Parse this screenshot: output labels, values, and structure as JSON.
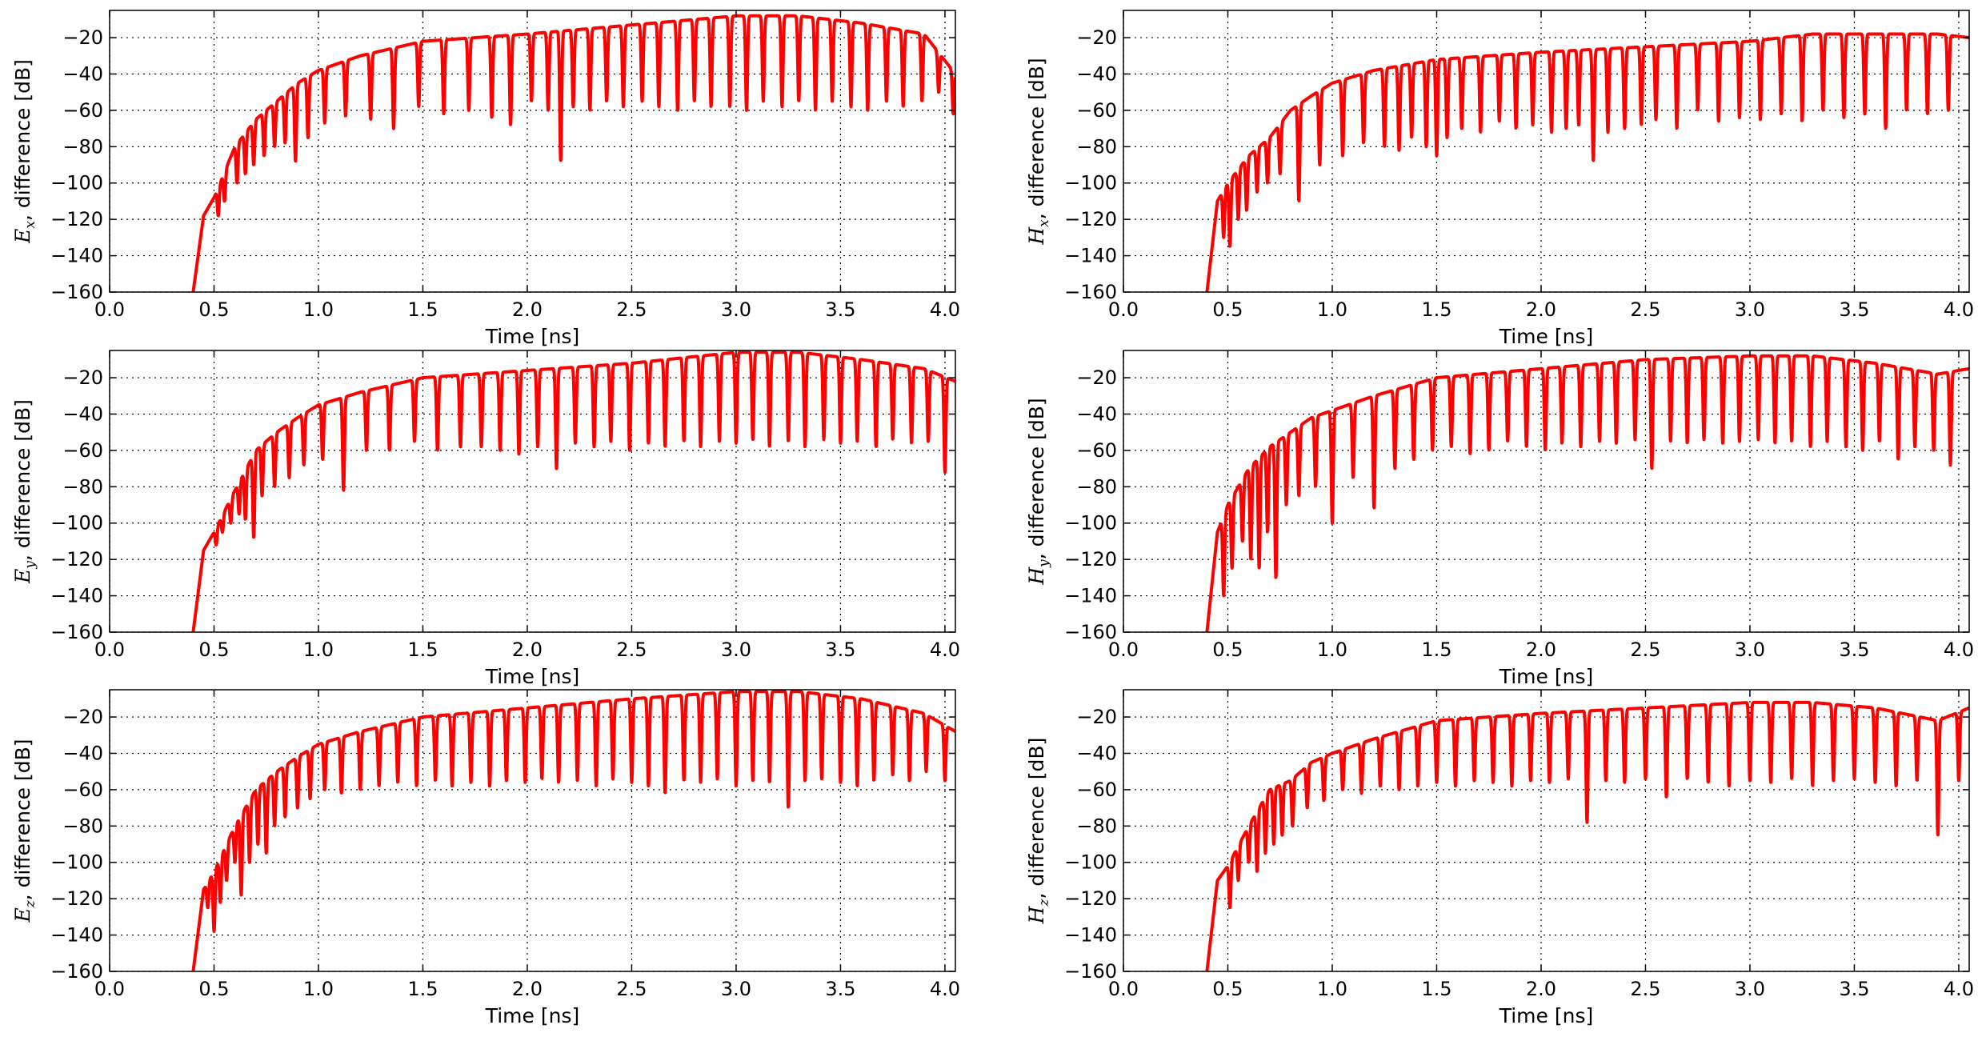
{
  "figure": {
    "line_color": "#ff0000",
    "grid_color": "#000000"
  },
  "chart_data": [
    {
      "type": "line",
      "ylabel_symbol": "E",
      "ylabel_subscript": "x",
      "ylabel_text": ", difference [dB]",
      "xlabel": "Time [ns]",
      "xlim": [
        0.0,
        4.05
      ],
      "ylim": [
        -160,
        -5
      ],
      "xticks": [
        "0.0",
        "0.5",
        "1.0",
        "1.5",
        "2.0",
        "2.5",
        "3.0",
        "3.5",
        "4.0"
      ],
      "yticks": [
        "-20",
        "-40",
        "-60",
        "-80",
        "-100",
        "-120",
        "-140",
        "-160"
      ],
      "grid": true,
      "envelope": {
        "x": [
          0.4,
          0.45,
          0.5,
          0.6,
          0.7,
          0.8,
          0.9,
          1.0,
          1.2,
          1.5,
          2.0,
          2.5,
          3.0,
          3.3,
          3.6,
          3.9,
          4.05
        ],
        "y": [
          -160,
          -118,
          -108,
          -80,
          -65,
          -55,
          -45,
          -38,
          -30,
          -22,
          -18,
          -13,
          -8,
          -8,
          -12,
          -18,
          -40
        ]
      },
      "nulls": [
        0.52,
        0.55,
        0.61,
        0.65,
        0.69,
        0.74,
        0.79,
        0.84,
        0.89,
        0.95,
        1.03,
        1.13,
        1.25,
        1.36,
        1.48,
        1.6,
        1.72,
        1.83,
        1.92,
        2.02,
        2.1,
        2.16,
        2.22,
        2.3,
        2.38,
        2.46,
        2.55,
        2.63,
        2.72,
        2.8,
        2.88,
        2.97,
        3.05,
        3.13,
        3.22,
        3.3,
        3.38,
        3.46,
        3.55,
        3.63,
        3.72,
        3.8,
        3.89,
        3.97,
        4.04
      ],
      "null_depths": [
        -118,
        -110,
        -100,
        -95,
        -90,
        -85,
        -80,
        -78,
        -88,
        -75,
        -67,
        -63,
        -65,
        -70,
        -58,
        -62,
        -60,
        -64,
        -68,
        -55,
        -60,
        -88,
        -58,
        -60,
        -55,
        -58,
        -55,
        -58,
        -60,
        -55,
        -58,
        -58,
        -60,
        -55,
        -58,
        -55,
        -60,
        -55,
        -58,
        -60,
        -55,
        -58,
        -55,
        -50,
        -62
      ]
    },
    {
      "type": "line",
      "ylabel_symbol": "H",
      "ylabel_subscript": "x",
      "ylabel_text": ", difference [dB]",
      "xlabel": "Time [ns]",
      "xlim": [
        0.0,
        4.05
      ],
      "ylim": [
        -160,
        -5
      ],
      "xticks": [
        "0.0",
        "0.5",
        "1.0",
        "1.5",
        "2.0",
        "2.5",
        "3.0",
        "3.5",
        "4.0"
      ],
      "yticks": [
        "-20",
        "-40",
        "-60",
        "-80",
        "-100",
        "-120",
        "-140",
        "-160"
      ],
      "grid": true,
      "envelope": {
        "x": [
          0.4,
          0.45,
          0.5,
          0.6,
          0.7,
          0.8,
          0.9,
          1.0,
          1.2,
          1.5,
          2.0,
          2.5,
          3.0,
          3.3,
          3.6,
          3.9,
          4.05
        ],
        "y": [
          -160,
          -110,
          -100,
          -85,
          -75,
          -60,
          -52,
          -45,
          -38,
          -32,
          -28,
          -25,
          -22,
          -18,
          -18,
          -18,
          -20
        ]
      },
      "nulls": [
        0.48,
        0.51,
        0.55,
        0.59,
        0.64,
        0.69,
        0.75,
        0.84,
        0.94,
        1.05,
        1.15,
        1.25,
        1.32,
        1.38,
        1.45,
        1.5,
        1.55,
        1.62,
        1.71,
        1.8,
        1.88,
        1.96,
        2.05,
        2.12,
        2.18,
        2.25,
        2.32,
        2.4,
        2.48,
        2.55,
        2.65,
        2.75,
        2.85,
        2.95,
        3.05,
        3.15,
        3.25,
        3.35,
        3.45,
        3.55,
        3.65,
        3.75,
        3.85,
        3.95
      ],
      "null_depths": [
        -130,
        -135,
        -120,
        -115,
        -105,
        -100,
        -95,
        -110,
        -90,
        -85,
        -78,
        -80,
        -82,
        -75,
        -80,
        -85,
        -75,
        -70,
        -72,
        -66,
        -70,
        -68,
        -72,
        -70,
        -68,
        -88,
        -72,
        -70,
        -68,
        -65,
        -70,
        -60,
        -66,
        -64,
        -65,
        -62,
        -66,
        -60,
        -64,
        -62,
        -70,
        -60,
        -62,
        -60
      ]
    },
    {
      "type": "line",
      "ylabel_symbol": "E",
      "ylabel_subscript": "y",
      "ylabel_text": ", difference [dB]",
      "xlabel": "Time [ns]",
      "xlim": [
        0.0,
        4.05
      ],
      "ylim": [
        -160,
        -5
      ],
      "xticks": [
        "0.0",
        "0.5",
        "1.0",
        "1.5",
        "2.0",
        "2.5",
        "3.0",
        "3.5",
        "4.0"
      ],
      "yticks": [
        "-20",
        "-40",
        "-60",
        "-80",
        "-100",
        "-120",
        "-140",
        "-160"
      ],
      "grid": true,
      "envelope": {
        "x": [
          0.4,
          0.45,
          0.5,
          0.6,
          0.7,
          0.8,
          0.9,
          1.0,
          1.2,
          1.5,
          2.0,
          2.5,
          3.0,
          3.3,
          3.6,
          3.9,
          4.05
        ],
        "y": [
          -160,
          -115,
          -105,
          -82,
          -60,
          -50,
          -42,
          -35,
          -28,
          -20,
          -16,
          -12,
          -6,
          -6,
          -10,
          -15,
          -22
        ]
      },
      "nulls": [
        0.51,
        0.54,
        0.58,
        0.62,
        0.65,
        0.69,
        0.73,
        0.79,
        0.86,
        0.93,
        1.02,
        1.12,
        1.23,
        1.34,
        1.46,
        1.57,
        1.68,
        1.78,
        1.87,
        1.96,
        2.05,
        2.14,
        2.23,
        2.32,
        2.4,
        2.49,
        2.58,
        2.66,
        2.75,
        2.83,
        2.92,
        3.0,
        3.08,
        3.16,
        3.25,
        3.33,
        3.42,
        3.5,
        3.58,
        3.67,
        3.75,
        3.84,
        3.92,
        4.0
      ],
      "null_depths": [
        -112,
        -105,
        -100,
        -95,
        -98,
        -108,
        -85,
        -80,
        -75,
        -68,
        -65,
        -82,
        -60,
        -60,
        -55,
        -60,
        -58,
        -58,
        -60,
        -62,
        -58,
        -70,
        -56,
        -58,
        -55,
        -60,
        -56,
        -58,
        -55,
        -58,
        -55,
        -56,
        -54,
        -58,
        -55,
        -58,
        -54,
        -56,
        -55,
        -58,
        -54,
        -56,
        -55,
        -72
      ]
    },
    {
      "type": "line",
      "ylabel_symbol": "H",
      "ylabel_subscript": "y",
      "ylabel_text": ", difference [dB]",
      "xlabel": "Time [ns]",
      "xlim": [
        0.0,
        4.05
      ],
      "ylim": [
        -160,
        -5
      ],
      "xticks": [
        "0.0",
        "0.5",
        "1.0",
        "1.5",
        "2.0",
        "2.5",
        "3.0",
        "3.5",
        "4.0"
      ],
      "yticks": [
        "-20",
        "-40",
        "-60",
        "-80",
        "-100",
        "-120",
        "-140",
        "-160"
      ],
      "grid": true,
      "envelope": {
        "x": [
          0.4,
          0.45,
          0.5,
          0.6,
          0.7,
          0.8,
          0.9,
          1.0,
          1.2,
          1.5,
          2.0,
          2.5,
          3.0,
          3.3,
          3.6,
          3.9,
          4.05
        ],
        "y": [
          -160,
          -105,
          -90,
          -70,
          -58,
          -50,
          -42,
          -38,
          -30,
          -20,
          -15,
          -10,
          -8,
          -8,
          -12,
          -18,
          -15
        ]
      },
      "nulls": [
        0.48,
        0.52,
        0.57,
        0.61,
        0.65,
        0.69,
        0.73,
        0.78,
        0.84,
        0.92,
        1.0,
        1.1,
        1.2,
        1.3,
        1.39,
        1.48,
        1.57,
        1.66,
        1.75,
        1.84,
        1.93,
        2.02,
        2.1,
        2.19,
        2.28,
        2.36,
        2.45,
        2.53,
        2.62,
        2.7,
        2.78,
        2.87,
        2.95,
        3.04,
        3.12,
        3.2,
        3.29,
        3.37,
        3.46,
        3.54,
        3.62,
        3.71,
        3.79,
        3.88,
        3.96
      ],
      "null_depths": [
        -140,
        -125,
        -110,
        -120,
        -125,
        -105,
        -130,
        -90,
        -85,
        -80,
        -100,
        -75,
        -92,
        -70,
        -65,
        -60,
        -58,
        -62,
        -60,
        -55,
        -58,
        -60,
        -56,
        -58,
        -55,
        -56,
        -54,
        -70,
        -55,
        -56,
        -54,
        -56,
        -55,
        -54,
        -56,
        -55,
        -58,
        -55,
        -58,
        -60,
        -55,
        -65,
        -58,
        -60,
        -68
      ]
    },
    {
      "type": "line",
      "ylabel_symbol": "E",
      "ylabel_subscript": "z",
      "ylabel_text": ", difference [dB]",
      "xlabel": "Time [ns]",
      "xlim": [
        0.0,
        4.05
      ],
      "ylim": [
        -160,
        -5
      ],
      "xticks": [
        "0.0",
        "0.5",
        "1.0",
        "1.5",
        "2.0",
        "2.5",
        "3.0",
        "3.5",
        "4.0"
      ],
      "yticks": [
        "-20",
        "-40",
        "-60",
        "-80",
        "-100",
        "-120",
        "-140",
        "-160"
      ],
      "grid": true,
      "envelope": {
        "x": [
          0.4,
          0.45,
          0.5,
          0.6,
          0.7,
          0.8,
          0.9,
          1.0,
          1.2,
          1.5,
          2.0,
          2.5,
          3.0,
          3.3,
          3.6,
          3.9,
          4.05
        ],
        "y": [
          -160,
          -115,
          -105,
          -80,
          -60,
          -50,
          -42,
          -35,
          -28,
          -20,
          -15,
          -10,
          -6,
          -6,
          -10,
          -18,
          -28
        ]
      },
      "nulls": [
        0.47,
        0.5,
        0.53,
        0.56,
        0.6,
        0.63,
        0.67,
        0.71,
        0.75,
        0.79,
        0.84,
        0.9,
        0.96,
        1.03,
        1.11,
        1.2,
        1.29,
        1.38,
        1.47,
        1.56,
        1.64,
        1.73,
        1.82,
        1.9,
        1.99,
        2.07,
        2.15,
        2.24,
        2.33,
        2.41,
        2.5,
        2.58,
        2.66,
        2.75,
        2.83,
        2.91,
        3.0,
        3.08,
        3.16,
        3.25,
        3.33,
        3.41,
        3.5,
        3.58,
        3.66,
        3.75,
        3.83,
        3.91,
        4.0
      ],
      "null_depths": [
        -125,
        -138,
        -122,
        -110,
        -100,
        -118,
        -100,
        -90,
        -95,
        -80,
        -75,
        -70,
        -65,
        -60,
        -62,
        -60,
        -58,
        -56,
        -58,
        -55,
        -58,
        -56,
        -58,
        -55,
        -56,
        -54,
        -56,
        -55,
        -58,
        -54,
        -56,
        -58,
        -62,
        -55,
        -56,
        -54,
        -58,
        -55,
        -56,
        -70,
        -55,
        -54,
        -56,
        -58,
        -55,
        -52,
        -55,
        -50,
        -55
      ]
    },
    {
      "type": "line",
      "ylabel_symbol": "H",
      "ylabel_subscript": "z",
      "ylabel_text": ", difference [dB]",
      "xlabel": "Time [ns]",
      "xlim": [
        0.0,
        4.05
      ],
      "ylim": [
        -160,
        -5
      ],
      "xticks": [
        "0.0",
        "0.5",
        "1.0",
        "1.5",
        "2.0",
        "2.5",
        "3.0",
        "3.5",
        "4.0"
      ],
      "yticks": [
        "-20",
        "-40",
        "-60",
        "-80",
        "-100",
        "-120",
        "-140",
        "-160"
      ],
      "grid": true,
      "envelope": {
        "x": [
          0.4,
          0.45,
          0.5,
          0.6,
          0.7,
          0.8,
          0.9,
          1.0,
          1.2,
          1.5,
          2.0,
          2.5,
          3.0,
          3.3,
          3.6,
          3.9,
          4.05
        ],
        "y": [
          -160,
          -110,
          -102,
          -80,
          -60,
          -55,
          -45,
          -40,
          -32,
          -22,
          -18,
          -15,
          -12,
          -12,
          -15,
          -22,
          -15
        ]
      },
      "nulls": [
        0.51,
        0.55,
        0.6,
        0.64,
        0.68,
        0.72,
        0.76,
        0.81,
        0.88,
        0.96,
        1.05,
        1.14,
        1.23,
        1.32,
        1.41,
        1.5,
        1.59,
        1.68,
        1.77,
        1.86,
        1.95,
        2.04,
        2.13,
        2.22,
        2.31,
        2.4,
        2.5,
        2.6,
        2.7,
        2.8,
        2.9,
        3.0,
        3.1,
        3.2,
        3.3,
        3.4,
        3.5,
        3.6,
        3.7,
        3.8,
        3.9,
        4.0
      ],
      "null_depths": [
        -125,
        -110,
        -100,
        -105,
        -95,
        -90,
        -85,
        -80,
        -70,
        -66,
        -60,
        -62,
        -58,
        -60,
        -58,
        -56,
        -58,
        -55,
        -56,
        -58,
        -55,
        -56,
        -54,
        -78,
        -55,
        -56,
        -54,
        -64,
        -54,
        -56,
        -58,
        -55,
        -56,
        -54,
        -58,
        -55,
        -54,
        -56,
        -58,
        -55,
        -85,
        -55
      ]
    }
  ]
}
